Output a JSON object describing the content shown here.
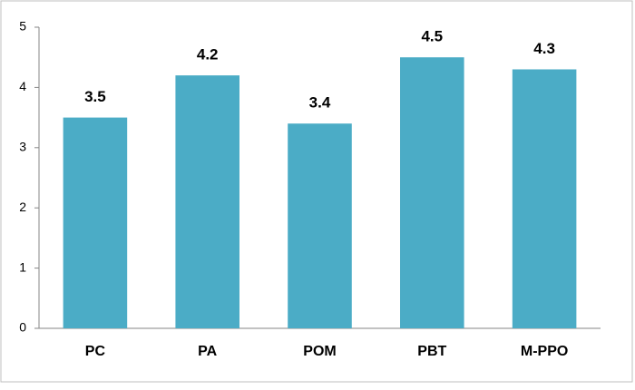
{
  "chart_data": {
    "type": "bar",
    "categories": [
      "PC",
      "PA",
      "POM",
      "PBT",
      "M-PPO"
    ],
    "values": [
      3.5,
      4.2,
      3.4,
      4.5,
      4.3
    ],
    "color": "#4bacc6",
    "ylim": [
      0,
      5
    ],
    "yticks": [
      0,
      1,
      2,
      3,
      4,
      5
    ],
    "grid": false
  }
}
